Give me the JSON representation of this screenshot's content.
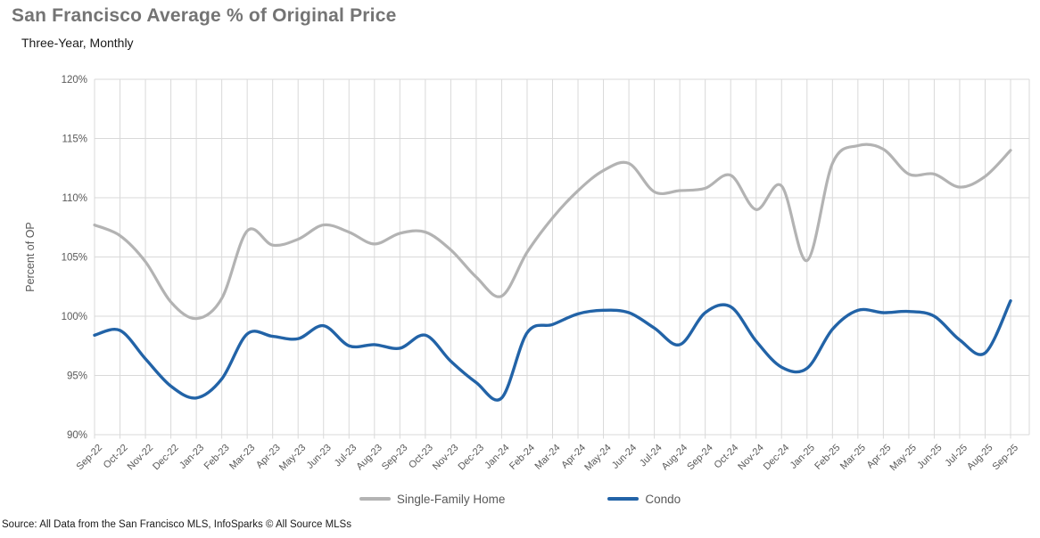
{
  "header": {
    "title": "San Francisco Average % of Original Price",
    "subtitle": "Three-Year, Monthly"
  },
  "source": "Source: All Data from the San Francisco MLS, InfoSparks © All Source MLSs",
  "colors": {
    "grid": "#d9d9d9",
    "axis_text": "#595959",
    "title_text": "#747474"
  },
  "chart_data": {
    "type": "line",
    "title": "San Francisco Average % of Original Price",
    "subtitle": "Three-Year, Monthly",
    "xlabel": "",
    "ylabel": "Percent of OP",
    "ylim": [
      90,
      120
    ],
    "ytick_step": 5,
    "ytick_suffix": "%",
    "grid": true,
    "line_style": "smooth",
    "legend_position": "bottom",
    "categories": [
      "Sep-22",
      "Oct-22",
      "Nov-22",
      "Dec-22",
      "Jan-23",
      "Feb-23",
      "Mar-23",
      "Apr-23",
      "May-23",
      "Jun-23",
      "Jul-23",
      "Aug-23",
      "Sep-23",
      "Oct-23",
      "Nov-23",
      "Dec-23",
      "Jan-24",
      "Feb-24",
      "Mar-24",
      "Apr-24",
      "May-24",
      "Jun-24",
      "Jul-24",
      "Aug-24",
      "Sep-24",
      "Oct-24",
      "Nov-24",
      "Dec-24",
      "Jan-25",
      "Feb-25",
      "Mar-25",
      "Apr-25",
      "May-25",
      "Jun-25",
      "Jul-25",
      "Aug-25",
      "Sep-25"
    ],
    "series": [
      {
        "name": "Single-Family Home",
        "color": "#b3b3b3",
        "values": [
          107.7,
          106.8,
          104.6,
          101.2,
          99.8,
          101.5,
          107.2,
          106.0,
          106.5,
          107.7,
          107.1,
          106.1,
          107.0,
          107.1,
          105.6,
          103.3,
          101.7,
          105.4,
          108.3,
          110.6,
          112.3,
          112.9,
          110.5,
          110.6,
          110.8,
          111.9,
          109.0,
          111.0,
          104.7,
          112.9,
          114.4,
          114.1,
          112.0,
          112.0,
          110.9,
          111.8,
          114.0
        ]
      },
      {
        "name": "Condo",
        "color": "#2263a7",
        "values": [
          98.4,
          98.8,
          96.4,
          94.1,
          93.1,
          94.7,
          98.5,
          98.3,
          98.1,
          99.2,
          97.5,
          97.6,
          97.3,
          98.4,
          96.2,
          94.4,
          93.1,
          98.6,
          99.3,
          100.2,
          100.5,
          100.3,
          99.0,
          97.6,
          100.3,
          100.8,
          97.9,
          95.7,
          95.6,
          98.9,
          100.5,
          100.3,
          100.4,
          100.0,
          98.0,
          96.9,
          101.3
        ]
      }
    ]
  }
}
